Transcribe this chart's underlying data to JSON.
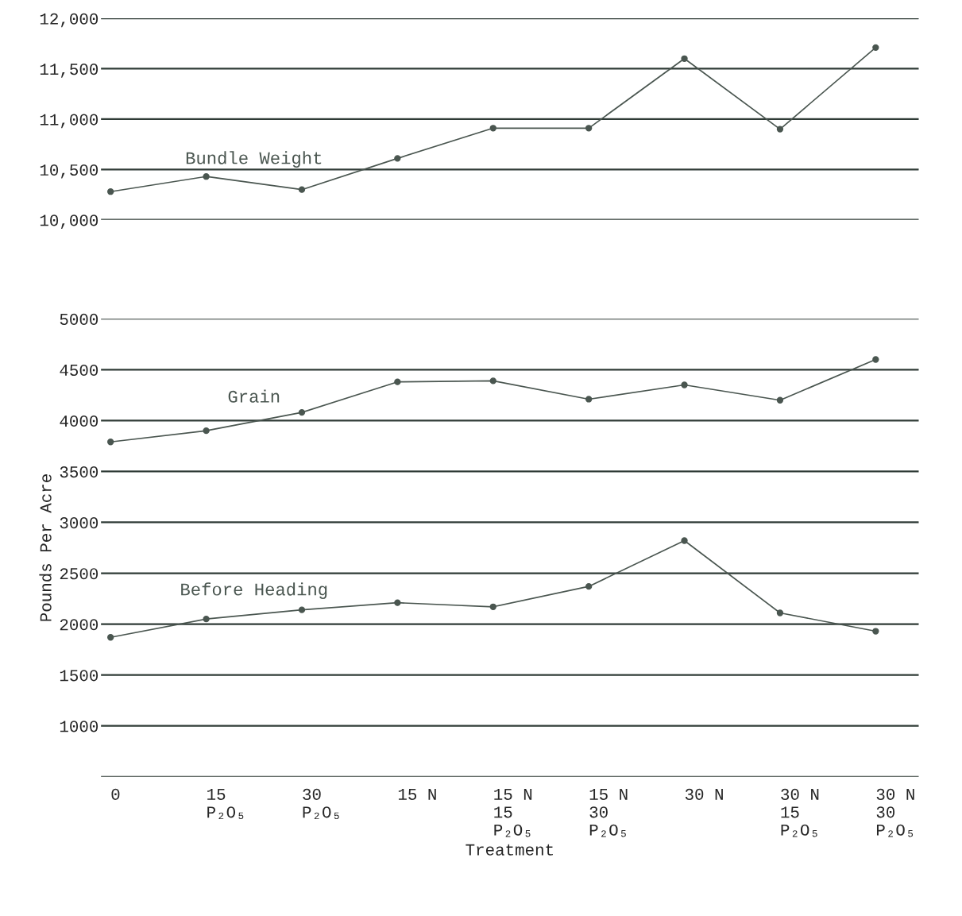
{
  "chart_data": [
    {
      "type": "line",
      "categories": [
        null,
        null,
        null,
        null,
        null,
        null,
        null,
        null,
        null
      ],
      "series": [
        {
          "name": "Bundle Weight",
          "color": "#4a5650",
          "values": [
            10280,
            10430,
            10300,
            10610,
            10910,
            10910,
            11600,
            10900,
            11710
          ]
        }
      ],
      "ylim": [
        10000,
        12000
      ],
      "yticks": [
        {
          "value": 10000,
          "label": "10,000"
        },
        {
          "value": 10500,
          "label": "10,500"
        },
        {
          "value": 11000,
          "label": "11,000"
        },
        {
          "value": 11500,
          "label": "11,500"
        },
        {
          "value": 12000,
          "label": "12,000"
        }
      ],
      "grid": "y",
      "marker": "circle",
      "line_style": "solid",
      "tick_labels": "y"
    },
    {
      "type": "line",
      "categories": [
        "0",
        "15\nP₂O₅",
        "30\nP₂O₅",
        "15 N",
        "15 N\n15\nP₂O₅",
        "15 N\n30\nP₂O₅",
        "30 N",
        "30 N\n15\nP₂O₅",
        "30 N\n30\nP₂O₅"
      ],
      "xlabel": "Treatment",
      "ylabel": "Pounds Per Acre",
      "series": [
        {
          "name": "Grain",
          "color": "#4a5650",
          "values": [
            3790,
            3900,
            4080,
            4380,
            4390,
            4210,
            4350,
            4200,
            4600
          ]
        },
        {
          "name": "Before Heading",
          "color": "#4a5650",
          "values": [
            1870,
            2050,
            2140,
            2210,
            2170,
            2370,
            2820,
            2110,
            1930
          ]
        }
      ],
      "ylim": [
        500,
        5000
      ],
      "yticks": [
        {
          "value": 500,
          "label": null
        },
        1000,
        1500,
        2000,
        2500,
        3000,
        3500,
        4000,
        4500,
        5000
      ],
      "grid": "y",
      "marker": "circle",
      "line_style": "solid"
    }
  ]
}
